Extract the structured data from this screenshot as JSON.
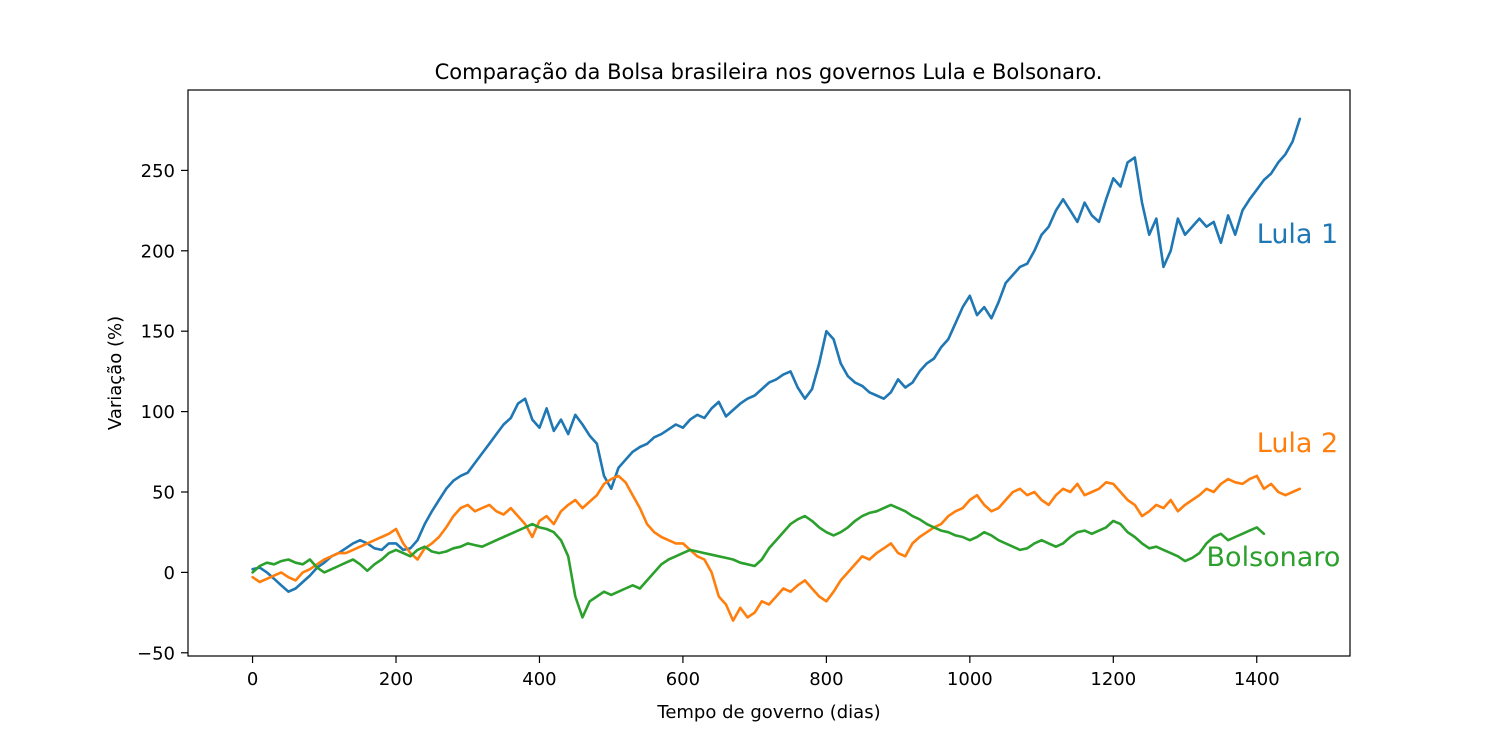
{
  "chart_data": {
    "type": "line",
    "title": "Comparação da Bolsa brasileira nos governos Lula e Bolsonaro.",
    "xlabel": "Tempo de governo (dias)",
    "ylabel": "Variação (%)",
    "xlim": [
      -90,
      1530
    ],
    "ylim": [
      -52,
      300
    ],
    "xticks": [
      "0",
      "200",
      "400",
      "600",
      "800",
      "1000",
      "1200",
      "1400"
    ],
    "yticks": [
      "−50",
      "0",
      "50",
      "100",
      "150",
      "200",
      "250"
    ],
    "grid": false,
    "legend": "none",
    "series": [
      {
        "name": "Lula 1",
        "color": "#1f77b4",
        "label_at": [
          1400,
          205
        ],
        "x": [
          0,
          10,
          20,
          30,
          40,
          50,
          60,
          70,
          80,
          90,
          100,
          110,
          120,
          130,
          140,
          150,
          160,
          170,
          180,
          190,
          200,
          210,
          220,
          230,
          240,
          250,
          260,
          270,
          280,
          290,
          300,
          310,
          320,
          330,
          340,
          350,
          360,
          370,
          380,
          390,
          400,
          410,
          420,
          430,
          440,
          450,
          460,
          470,
          480,
          490,
          500,
          510,
          520,
          530,
          540,
          550,
          560,
          570,
          580,
          590,
          600,
          610,
          620,
          630,
          640,
          650,
          660,
          670,
          680,
          690,
          700,
          710,
          720,
          730,
          740,
          750,
          760,
          770,
          780,
          790,
          800,
          810,
          820,
          830,
          840,
          850,
          860,
          870,
          880,
          890,
          900,
          910,
          920,
          930,
          940,
          950,
          960,
          970,
          980,
          990,
          1000,
          1010,
          1020,
          1030,
          1040,
          1050,
          1060,
          1070,
          1080,
          1090,
          1100,
          1110,
          1120,
          1130,
          1140,
          1150,
          1160,
          1170,
          1180,
          1190,
          1200,
          1210,
          1220,
          1230,
          1240,
          1250,
          1260,
          1270,
          1280,
          1290,
          1300,
          1310,
          1320,
          1330,
          1340,
          1350,
          1360,
          1370,
          1380,
          1390,
          1400,
          1410,
          1420,
          1430,
          1440,
          1450,
          1460
        ],
        "y": [
          2,
          3,
          0,
          -4,
          -8,
          -12,
          -10,
          -6,
          -2,
          3,
          6,
          10,
          12,
          15,
          18,
          20,
          18,
          15,
          14,
          18,
          18,
          14,
          15,
          20,
          30,
          38,
          45,
          52,
          57,
          60,
          62,
          68,
          74,
          80,
          86,
          92,
          96,
          105,
          108,
          95,
          90,
          102,
          88,
          95,
          86,
          98,
          92,
          85,
          80,
          60,
          52,
          65,
          70,
          75,
          78,
          80,
          84,
          86,
          89,
          92,
          90,
          95,
          98,
          96,
          102,
          106,
          97,
          101,
          105,
          108,
          110,
          114,
          118,
          120,
          123,
          125,
          115,
          108,
          114,
          130,
          150,
          145,
          130,
          122,
          118,
          116,
          112,
          110,
          108,
          112,
          120,
          115,
          118,
          125,
          130,
          133,
          140,
          145,
          155,
          165,
          172,
          160,
          165,
          158,
          168,
          180,
          185,
          190,
          192,
          200,
          210,
          215,
          225,
          232,
          225,
          218,
          230,
          222,
          218,
          232,
          245,
          240,
          255,
          258,
          230,
          210,
          220,
          190,
          200,
          220,
          210,
          215,
          220,
          215,
          218,
          205,
          222,
          210,
          225,
          232,
          238,
          244,
          248,
          255,
          260,
          268,
          282
        ]
      },
      {
        "name": "Lula 2",
        "color": "#ff7f0e",
        "label_at": [
          1400,
          75
        ],
        "x": [
          0,
          10,
          20,
          30,
          40,
          50,
          60,
          70,
          80,
          90,
          100,
          110,
          120,
          130,
          140,
          150,
          160,
          170,
          180,
          190,
          200,
          210,
          220,
          230,
          240,
          250,
          260,
          270,
          280,
          290,
          300,
          310,
          320,
          330,
          340,
          350,
          360,
          370,
          380,
          390,
          400,
          410,
          420,
          430,
          440,
          450,
          460,
          470,
          480,
          490,
          500,
          510,
          520,
          530,
          540,
          550,
          560,
          570,
          580,
          590,
          600,
          610,
          620,
          630,
          640,
          650,
          660,
          670,
          680,
          690,
          700,
          710,
          720,
          730,
          740,
          750,
          760,
          770,
          780,
          790,
          800,
          810,
          820,
          830,
          840,
          850,
          860,
          870,
          880,
          890,
          900,
          910,
          920,
          930,
          940,
          950,
          960,
          970,
          980,
          990,
          1000,
          1010,
          1020,
          1030,
          1040,
          1050,
          1060,
          1070,
          1080,
          1090,
          1100,
          1110,
          1120,
          1130,
          1140,
          1150,
          1160,
          1170,
          1180,
          1190,
          1200,
          1210,
          1220,
          1230,
          1240,
          1250,
          1260,
          1270,
          1280,
          1290,
          1300,
          1310,
          1320,
          1330,
          1340,
          1350,
          1360,
          1370,
          1380,
          1390,
          1400,
          1410,
          1420,
          1430,
          1440,
          1450,
          1460
        ],
        "y": [
          -3,
          -6,
          -4,
          -2,
          0,
          -3,
          -5,
          0,
          2,
          5,
          8,
          10,
          12,
          12,
          14,
          16,
          18,
          20,
          22,
          24,
          27,
          18,
          12,
          8,
          15,
          18,
          22,
          28,
          35,
          40,
          42,
          38,
          40,
          42,
          38,
          36,
          40,
          35,
          30,
          22,
          32,
          35,
          30,
          38,
          42,
          45,
          40,
          44,
          48,
          55,
          58,
          60,
          56,
          48,
          40,
          30,
          25,
          22,
          20,
          18,
          18,
          14,
          10,
          8,
          0,
          -15,
          -20,
          -30,
          -22,
          -28,
          -25,
          -18,
          -20,
          -15,
          -10,
          -12,
          -8,
          -5,
          -10,
          -15,
          -18,
          -12,
          -5,
          0,
          5,
          10,
          8,
          12,
          15,
          18,
          12,
          10,
          18,
          22,
          25,
          28,
          30,
          35,
          38,
          40,
          45,
          48,
          42,
          38,
          40,
          45,
          50,
          52,
          48,
          50,
          45,
          42,
          48,
          52,
          50,
          55,
          48,
          50,
          52,
          56,
          55,
          50,
          45,
          42,
          35,
          38,
          42,
          40,
          45,
          38,
          42,
          45,
          48,
          52,
          50,
          55,
          58,
          56,
          55,
          58,
          60,
          52,
          55,
          50,
          48,
          50,
          52
        ]
      },
      {
        "name": "Bolsonaro",
        "color": "#2ca02c",
        "label_at": [
          1330,
          4
        ],
        "x": [
          0,
          10,
          20,
          30,
          40,
          50,
          60,
          70,
          80,
          90,
          100,
          110,
          120,
          130,
          140,
          150,
          160,
          170,
          180,
          190,
          200,
          210,
          220,
          230,
          240,
          250,
          260,
          270,
          280,
          290,
          300,
          310,
          320,
          330,
          340,
          350,
          360,
          370,
          380,
          390,
          400,
          410,
          420,
          430,
          440,
          450,
          460,
          470,
          480,
          490,
          500,
          510,
          520,
          530,
          540,
          550,
          560,
          570,
          580,
          590,
          600,
          610,
          620,
          630,
          640,
          650,
          660,
          670,
          680,
          690,
          700,
          710,
          720,
          730,
          740,
          750,
          760,
          770,
          780,
          790,
          800,
          810,
          820,
          830,
          840,
          850,
          860,
          870,
          880,
          890,
          900,
          910,
          920,
          930,
          940,
          950,
          960,
          970,
          980,
          990,
          1000,
          1010,
          1020,
          1030,
          1040,
          1050,
          1060,
          1070,
          1080,
          1090,
          1100,
          1110,
          1120,
          1130,
          1140,
          1150,
          1160,
          1170,
          1180,
          1190,
          1200,
          1210,
          1220,
          1230,
          1240,
          1250,
          1260,
          1270,
          1280,
          1290,
          1300,
          1310,
          1320,
          1330,
          1340,
          1350,
          1360,
          1370,
          1380,
          1390,
          1400,
          1410
        ],
        "y": [
          0,
          4,
          6,
          5,
          7,
          8,
          6,
          5,
          8,
          3,
          0,
          2,
          4,
          6,
          8,
          5,
          1,
          5,
          8,
          12,
          14,
          12,
          10,
          14,
          16,
          13,
          12,
          13,
          15,
          16,
          18,
          17,
          16,
          18,
          20,
          22,
          24,
          26,
          28,
          30,
          28,
          27,
          25,
          20,
          10,
          -15,
          -28,
          -18,
          -15,
          -12,
          -14,
          -12,
          -10,
          -8,
          -10,
          -5,
          0,
          5,
          8,
          10,
          12,
          14,
          13,
          12,
          11,
          10,
          9,
          8,
          6,
          5,
          4,
          8,
          15,
          20,
          25,
          30,
          33,
          35,
          32,
          28,
          25,
          23,
          25,
          28,
          32,
          35,
          37,
          38,
          40,
          42,
          40,
          38,
          35,
          33,
          30,
          28,
          26,
          25,
          23,
          22,
          20,
          22,
          25,
          23,
          20,
          18,
          16,
          14,
          15,
          18,
          20,
          18,
          16,
          18,
          22,
          25,
          26,
          24,
          26,
          28,
          32,
          30,
          25,
          22,
          18,
          15,
          16,
          14,
          12,
          10,
          7,
          9,
          12,
          18,
          22,
          24,
          20,
          22,
          24,
          26,
          28,
          24
        ]
      }
    ]
  }
}
